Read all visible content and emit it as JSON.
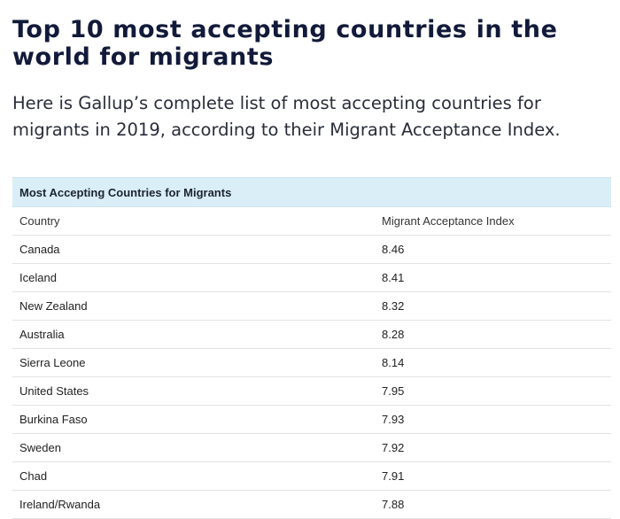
{
  "article": {
    "title": "Top 10 most accepting countries in the world for migrants",
    "intro": "Here is Gallup’s complete list of most accepting countries for migrants in 2019, according to their Migrant Acceptance Index."
  },
  "table": {
    "caption": "Most Accepting Countries for Migrants",
    "columns": [
      "Country",
      "Migrant Acceptance Index"
    ],
    "rows": [
      {
        "country": "Canada",
        "index": "8.46"
      },
      {
        "country": "Iceland",
        "index": "8.41"
      },
      {
        "country": "New Zealand",
        "index": "8.32"
      },
      {
        "country": "Australia",
        "index": "8.28"
      },
      {
        "country": "Sierra Leone",
        "index": "8.14"
      },
      {
        "country": "United States",
        "index": "7.95"
      },
      {
        "country": "Burkina Faso",
        "index": "7.93"
      },
      {
        "country": "Sweden",
        "index": "7.92"
      },
      {
        "country": "Chad",
        "index": "7.91"
      },
      {
        "country": "Ireland/Rwanda",
        "index": "7.88"
      }
    ]
  },
  "colors": {
    "title": "#121a3a",
    "caption_background": "#d9eef6",
    "row_border": "#e3e3e3"
  }
}
